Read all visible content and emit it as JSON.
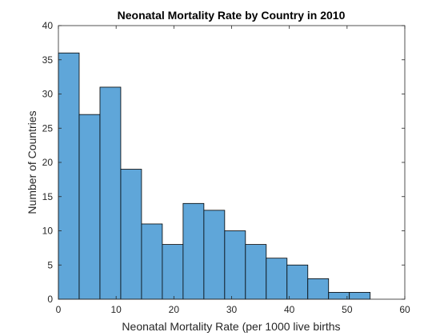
{
  "chart_data": {
    "type": "bar",
    "title": "Neonatal Mortality Rate by Country in 2010",
    "xlabel": "Neonatal Mortality Rate (per 1000 live births",
    "ylabel": "Number of Countries",
    "xlim": [
      0,
      60
    ],
    "ylim": [
      0,
      40
    ],
    "xticks": [
      0,
      10,
      20,
      30,
      40,
      50,
      60
    ],
    "yticks": [
      0,
      5,
      10,
      15,
      20,
      25,
      30,
      35,
      40
    ],
    "grid": false,
    "bin_edges": [
      0,
      3.6,
      7.2,
      10.8,
      14.4,
      18.0,
      21.6,
      25.2,
      28.8,
      32.4,
      36.0,
      39.6,
      43.2,
      46.8,
      50.4,
      54.0
    ],
    "values": [
      36,
      27,
      31,
      19,
      11,
      8,
      14,
      13,
      10,
      8,
      6,
      5,
      3,
      1,
      1
    ],
    "bar_color": "#5fa6d9",
    "edge_color": "#000000"
  }
}
